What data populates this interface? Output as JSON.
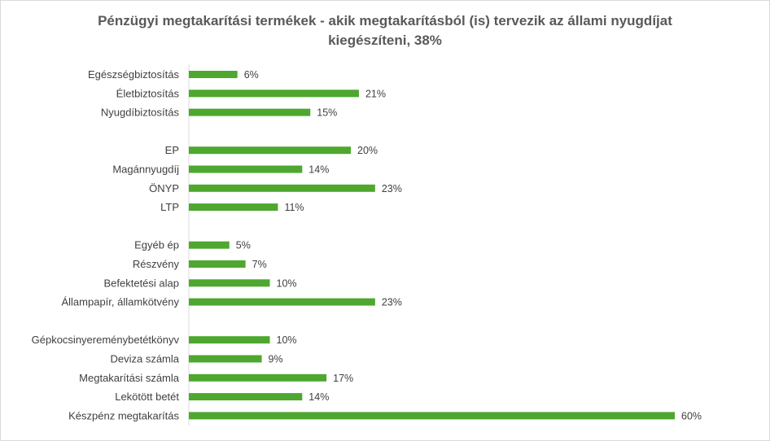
{
  "chart_data": {
    "type": "bar",
    "orientation": "horizontal",
    "title_lines": [
      "Pénzügyi megtakarítási termékek - akik megtakarításból (is) tervezik az állami nyugdíjat",
      "kiegészíteni, 38%"
    ],
    "categories": [
      "Egészségbiztosítás",
      "Életbiztosítás",
      "Nyugdíbiztosítás",
      "",
      "EP",
      "Magánnyugdíj",
      "ÖNYP",
      "LTP",
      "",
      "Egyéb ép",
      "Részvény",
      "Befektetési alap",
      "Állampapír, államkötvény",
      "",
      "Gépkocsinyereménybetétkönyv",
      "Deviza számla",
      "Megtakarítási számla",
      "Lekötött betét",
      "Készpénz megtakarítás"
    ],
    "values": [
      6,
      21,
      15,
      null,
      20,
      14,
      23,
      11,
      null,
      5,
      7,
      10,
      23,
      null,
      10,
      9,
      17,
      14,
      60
    ],
    "value_labels": [
      "6%",
      "21%",
      "15%",
      "",
      "20%",
      "14%",
      "23%",
      "11%",
      "",
      "5%",
      "7%",
      "10%",
      "23%",
      "",
      "10%",
      "9%",
      "17%",
      "14%",
      "60%"
    ],
    "bar_color": "#4ea72e",
    "axis_color": "#d9d9d9",
    "grid": false,
    "legend": "none"
  }
}
